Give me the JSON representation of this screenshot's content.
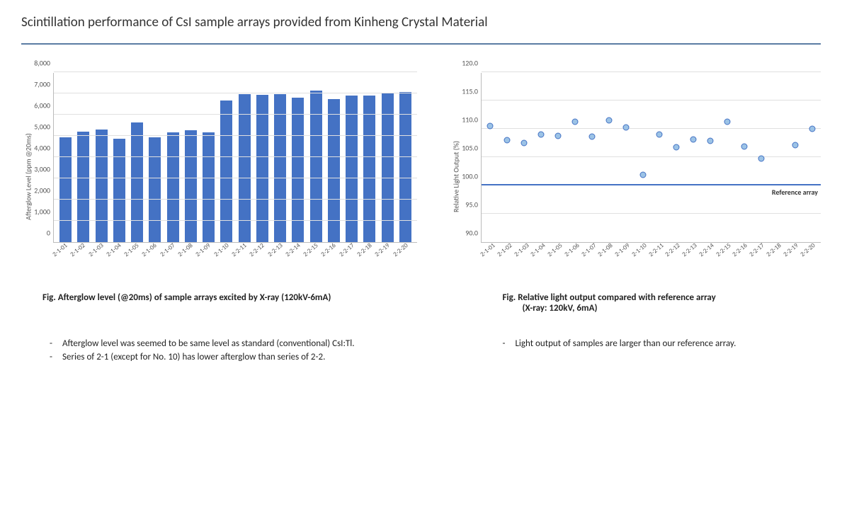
{
  "title": "Scintillation performance of CsI sample arrays provided from Kinheng Crystal Material",
  "divider_color": "#5b7ca3",
  "bar_chart": {
    "type": "bar",
    "y_label": "Afterglow Level (ppm @20ms)",
    "y_min": 0,
    "y_max": 8000,
    "y_tick_step": 1000,
    "y_tick_labels": [
      "0",
      "1,000",
      "2,000",
      "3,000",
      "4,000",
      "5,000",
      "6,000",
      "7,000",
      "8,000"
    ],
    "bar_color": "#4472c4",
    "grid_color": "#e0e0e0",
    "axis_color": "#bbbbbb",
    "bar_width_ratio": 0.68,
    "label_fontsize": 10,
    "tick_fontsize": 10,
    "categories": [
      "2-1-01",
      "2-1-02",
      "2-1-03",
      "2-1-04",
      "2-1-05",
      "2-1-06",
      "2-1-07",
      "2-1-08",
      "2-1-09",
      "2-1-10",
      "2-2-11",
      "2-2-12",
      "2-2-13",
      "2-2-14",
      "2-2-15",
      "2-2-16",
      "2-2-17",
      "2-2-18",
      "2-2-19",
      "2-2-20"
    ],
    "values": [
      4950,
      5200,
      5300,
      4870,
      5620,
      4950,
      5180,
      5280,
      5180,
      6670,
      6980,
      6930,
      6980,
      6800,
      7130,
      6720,
      6900,
      6910,
      6990,
      7070
    ]
  },
  "scatter_chart": {
    "type": "scatter",
    "y_label": "Relative Light Output (%)",
    "y_min": 90.0,
    "y_max": 120.0,
    "y_tick_step": 5.0,
    "y_tick_labels": [
      "90.0",
      "95.0",
      "100.0",
      "105.0",
      "110.0",
      "115.0",
      "120.0"
    ],
    "marker_fill": "#9cc3e6",
    "marker_stroke": "#4472c4",
    "marker_size_px": 9,
    "reference_line_value": 100.0,
    "reference_line_color": "#4472c4",
    "reference_label": "Reference array",
    "grid_color": "#e0e0e0",
    "axis_color": "#bbbbbb",
    "label_fontsize": 10,
    "tick_fontsize": 10,
    "categories": [
      "2-1-01",
      "2-1-02",
      "2-1-03",
      "2-1-04",
      "2-1-05",
      "2-1-06",
      "2-1-07",
      "2-1-08",
      "2-1-09",
      "2-1-10",
      "2-2-11",
      "2-2-12",
      "2-2-13",
      "2-2-14",
      "2-2-15",
      "2-2-16",
      "2-2-17",
      "2-2-18",
      "2-2-19",
      "2-2-20"
    ],
    "values": [
      110.5,
      108.0,
      107.5,
      109.0,
      108.8,
      111.2,
      108.6,
      111.5,
      110.3,
      101.9,
      109.0,
      106.8,
      108.1,
      107.9,
      111.2,
      106.9,
      104.8,
      null,
      107.1,
      110.0
    ]
  },
  "caption_left": "Fig.  Afterglow level (@20ms) of sample arrays excited by X-ray (120kV-6mA)",
  "caption_right_line1": "Fig. Relative light output compared with reference array",
  "caption_right_line2": "(X-ray: 120kV, 6mA)",
  "bullets_left": [
    "Afterglow level was seemed to be same level as standard (conventional) CsI:Tl.",
    "Series of 2-1 (except for No. 10) has lower afterglow than series of 2-2."
  ],
  "bullets_right": [
    "Light output of samples are larger than our reference array."
  ],
  "colors": {
    "text": "#333333",
    "background": "#ffffff"
  }
}
